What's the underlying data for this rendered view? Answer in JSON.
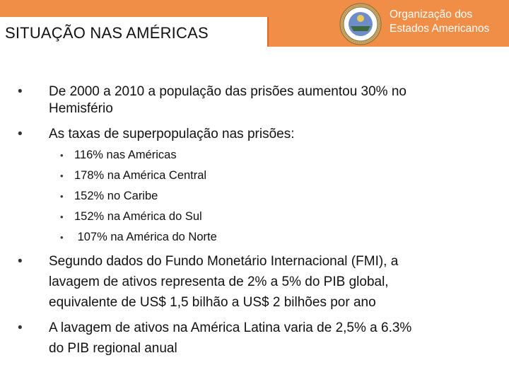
{
  "header": {
    "title": "SITUAÇÃO NAS AMÉRICAS",
    "org_line1": "Organização dos",
    "org_line2": "Estados Americanos",
    "seal_icon": "oas-seal-icon",
    "background_color": "#f08d46"
  },
  "bullets": [
    {
      "lines": [
        "De 2000 a 2010 a população das prisões aumentou 30% no",
        "Hemisfério"
      ]
    },
    {
      "lines": [
        "As taxas de superpopulação nas prisões:"
      ]
    },
    {
      "lines": [
        "Segundo dados do Fundo Monetário Internacional (FMI), a",
        "lavagem de ativos representa de 2% a 5% do PIB global,",
        "equivalente de US$ 1,5 bilhão a US$ 2 bilhões por ano"
      ]
    },
    {
      "lines": [
        "A lavagem de ativos na América Latina varia de 2,5% a 6.3%",
        "do PIB regional anual"
      ]
    }
  ],
  "sub_bullets": [
    "116% nas Américas",
    "178% na América Central",
    "152% no Caribe",
    "152% na América do Sul",
    " 107% na América do Norte"
  ]
}
